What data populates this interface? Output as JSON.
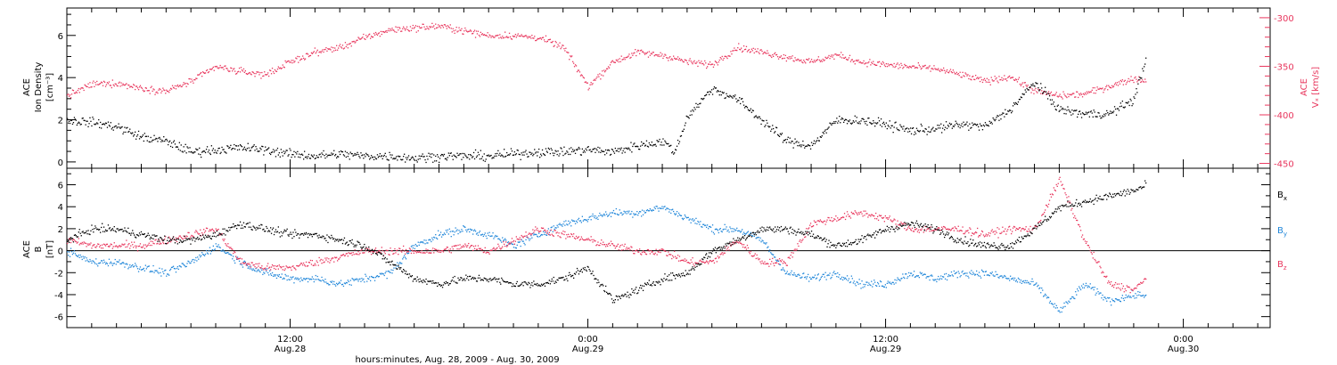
{
  "colors": {
    "axis": "#000000",
    "density": "#000000",
    "vx": "#e8365d",
    "bx": "#000000",
    "by": "#1f86d9",
    "bz": "#e8365d"
  },
  "chart_data": [
    {
      "type": "scatter",
      "panel": "top",
      "left_ylabel_lines": [
        "ACE",
        "Ion Density",
        "[cm⁻³]"
      ],
      "right_ylabel_lines": [
        "ACE",
        "Vₓ [km/s]"
      ],
      "ylim_left": [
        -0.3,
        7.3
      ],
      "ylim_right": [
        -455,
        -290
      ],
      "yticks_left": [
        "0",
        "2",
        "4",
        "6"
      ],
      "yticks_right": [
        "-450",
        "-400",
        "-350",
        "-300"
      ],
      "x_hours_range": [
        3,
        51.5
      ],
      "data_end_hour": 46.5,
      "series": [
        {
          "key": "density",
          "axis": "left",
          "anchors_hours": [
            3,
            4,
            5,
            6,
            7,
            8,
            9,
            10,
            11,
            12,
            13,
            14,
            15,
            16,
            17,
            18,
            19,
            20,
            21,
            22,
            23,
            24,
            25,
            26,
            27,
            27.5,
            28,
            29,
            30,
            31,
            32,
            33,
            34,
            35,
            36,
            37,
            38,
            39,
            40,
            41,
            42,
            43,
            44,
            45,
            46,
            46.5
          ],
          "values": [
            2.0,
            1.9,
            1.7,
            1.2,
            1.0,
            0.5,
            0.6,
            0.7,
            0.6,
            0.4,
            0.3,
            0.4,
            0.3,
            0.3,
            0.2,
            0.3,
            0.3,
            0.3,
            0.4,
            0.5,
            0.5,
            0.6,
            0.5,
            0.8,
            1.0,
            0.5,
            2.2,
            3.5,
            3.0,
            2.0,
            1.0,
            0.8,
            2.0,
            2.0,
            1.8,
            1.5,
            1.6,
            1.8,
            1.7,
            2.5,
            3.8,
            2.5,
            2.3,
            2.3,
            3.0,
            5.0
          ]
        },
        {
          "key": "vx",
          "axis": "right",
          "anchors_hours": [
            3,
            4,
            5,
            6,
            7,
            8,
            9,
            10,
            11,
            12,
            13,
            14,
            15,
            16,
            17,
            18,
            19,
            20,
            21,
            22,
            23,
            24,
            25,
            26,
            26.5,
            27,
            28,
            29,
            30,
            31,
            32,
            33,
            34,
            35,
            36,
            37,
            38,
            39,
            40,
            41,
            42,
            43,
            44,
            45,
            46,
            46.5
          ],
          "values": [
            -380,
            -368,
            -367,
            -372,
            -375,
            -365,
            -350,
            -355,
            -358,
            -345,
            -335,
            -330,
            -320,
            -312,
            -310,
            -308,
            -313,
            -318,
            -318,
            -320,
            -330,
            -370,
            -345,
            -335,
            -337,
            -338,
            -345,
            -348,
            -330,
            -335,
            -340,
            -345,
            -338,
            -345,
            -348,
            -350,
            -352,
            -358,
            -365,
            -360,
            -375,
            -380,
            -378,
            -370,
            -362,
            -365
          ]
        }
      ]
    },
    {
      "type": "scatter",
      "panel": "bottom",
      "left_ylabel_lines": [
        "ACE",
        "B",
        "[nT]"
      ],
      "ylim": [
        -7,
        7.5
      ],
      "yticks": [
        "-6",
        "-4",
        "-2",
        "0",
        "2",
        "4",
        "6"
      ],
      "x_hours_range": [
        3,
        51.5
      ],
      "data_end_hour": 46.5,
      "series": [
        {
          "key": "bx",
          "name_base": "B",
          "name_sub": "x",
          "anchors_hours": [
            3,
            4,
            5,
            6,
            7,
            8,
            9,
            10,
            11,
            12,
            13,
            14,
            15,
            16,
            17,
            18,
            19,
            20,
            21,
            22,
            23,
            24,
            25,
            26,
            27,
            28,
            29,
            30,
            31,
            32,
            33,
            34,
            35,
            36,
            37,
            38,
            39,
            40,
            41,
            42,
            43,
            44,
            45,
            46,
            46.5
          ],
          "values": [
            1.0,
            2.0,
            2.0,
            1.5,
            1.0,
            1.0,
            1.5,
            2.5,
            2.0,
            1.5,
            1.5,
            1.0,
            0.5,
            -1.0,
            -2.5,
            -3.0,
            -2.5,
            -2.5,
            -3.0,
            -3.0,
            -2.5,
            -1.5,
            -4.5,
            -3.5,
            -2.5,
            -2.0,
            0.0,
            1.0,
            2.0,
            2.0,
            1.5,
            0.5,
            1.0,
            2.0,
            2.5,
            2.0,
            1.0,
            0.5,
            0.5,
            2.0,
            4.0,
            4.5,
            5.0,
            5.5,
            6.0
          ]
        },
        {
          "key": "by",
          "name_base": "B",
          "name_sub": "y",
          "anchors_hours": [
            3,
            4,
            5,
            6,
            7,
            8,
            9,
            10,
            11,
            12,
            13,
            14,
            15,
            16,
            17,
            18,
            19,
            20,
            21,
            22,
            23,
            24,
            25,
            26,
            27,
            28,
            29,
            30,
            31,
            32,
            33,
            34,
            35,
            36,
            37,
            38,
            39,
            40,
            41,
            42,
            43,
            44,
            45,
            46,
            46.5
          ],
          "values": [
            0.0,
            -1.0,
            -1.0,
            -1.5,
            -2.0,
            -1.0,
            0.5,
            -1.0,
            -2.0,
            -2.5,
            -2.5,
            -3.0,
            -2.5,
            -2.0,
            0.5,
            1.5,
            2.0,
            1.5,
            0.5,
            1.5,
            2.5,
            3.0,
            3.5,
            3.5,
            4.0,
            3.0,
            2.0,
            2.0,
            1.0,
            -2.0,
            -2.5,
            -2.0,
            -3.0,
            -3.0,
            -2.0,
            -2.5,
            -2.0,
            -2.0,
            -2.5,
            -3.0,
            -5.5,
            -3.0,
            -4.5,
            -4.0,
            -4.0
          ]
        },
        {
          "key": "bz",
          "name_base": "B",
          "name_sub": "z",
          "anchors_hours": [
            3,
            4,
            5,
            6,
            7,
            8,
            9,
            10,
            11,
            12,
            13,
            14,
            15,
            16,
            17,
            18,
            19,
            20,
            21,
            22,
            23,
            24,
            25,
            26,
            27,
            28,
            29,
            30,
            31,
            32,
            33,
            34,
            35,
            36,
            37,
            38,
            39,
            40,
            41,
            42,
            43,
            44,
            45,
            46,
            46.5
          ],
          "values": [
            1.0,
            0.5,
            0.5,
            0.5,
            1.0,
            1.5,
            2.0,
            -1.0,
            -1.5,
            -1.5,
            -1.0,
            -0.5,
            0.0,
            0.0,
            0.0,
            0.0,
            0.5,
            0.0,
            1.0,
            2.0,
            1.5,
            1.0,
            0.5,
            0.0,
            0.0,
            -1.0,
            -1.0,
            1.0,
            -1.0,
            -1.0,
            2.5,
            3.0,
            3.5,
            3.0,
            2.0,
            2.0,
            2.0,
            1.5,
            2.0,
            2.0,
            6.5,
            1.0,
            -3.0,
            -3.5,
            -2.5
          ]
        }
      ]
    }
  ],
  "x_axis": {
    "title": "hours:minutes, Aug. 28, 2009 - Aug. 30, 2009",
    "labels": [
      {
        "time": "12:00",
        "date": "Aug.28",
        "hour": 12
      },
      {
        "time": "0:00",
        "date": "Aug.29",
        "hour": 24
      },
      {
        "time": "12:00",
        "date": "Aug.29",
        "hour": 36
      },
      {
        "time": "0:00",
        "date": "Aug.30",
        "hour": 48
      }
    ]
  }
}
